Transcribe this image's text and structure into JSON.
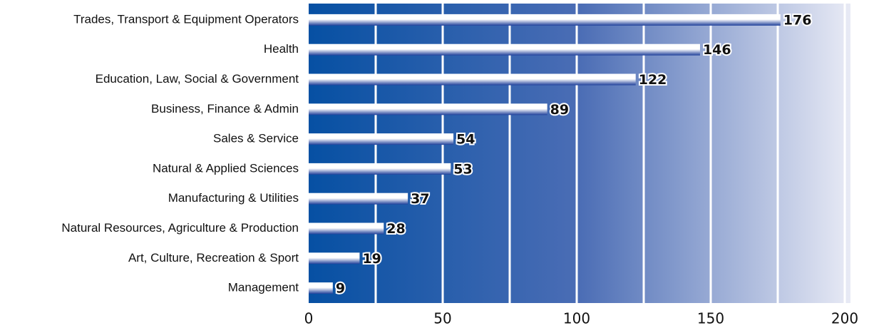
{
  "chart_data": {
    "type": "barh",
    "categories": [
      "Trades, Transport & Equipment Operators",
      "Health",
      "Education, Law, Social & Government",
      "Business, Finance & Admin",
      "Sales & Service",
      "Natural & Applied Sciences",
      "Manufacturing & Utilities",
      "Natural Resources, Agriculture & Production",
      "Art, Culture, Recreation & Sport",
      "Management"
    ],
    "values": [
      176,
      146,
      122,
      89,
      54,
      53,
      37,
      28,
      19,
      9
    ],
    "xlim": [
      0,
      200
    ],
    "xticks": [
      0,
      50,
      100,
      150,
      200
    ],
    "minor_xticks": [
      25,
      75,
      125,
      175
    ],
    "grid": true,
    "color": "#1e3f9a"
  }
}
